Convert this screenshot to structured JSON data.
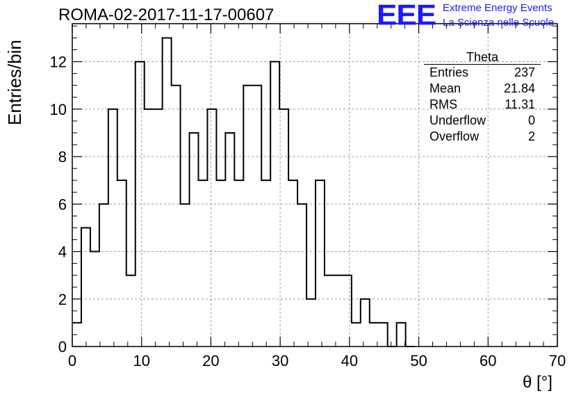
{
  "run_title": "ROMA-02-2017-11-17-00607",
  "logo": {
    "mark": "EEE",
    "line1": "Extreme Energy Events",
    "line2": "La Scienza nelle Scuole",
    "color": "#1a1aff"
  },
  "stats": {
    "title": "Theta",
    "rows": [
      {
        "label": "Entries",
        "value": "237"
      },
      {
        "label": "Mean",
        "value": "21.84"
      },
      {
        "label": "RMS",
        "value": "11.31"
      },
      {
        "label": "Underflow",
        "value": "0"
      },
      {
        "label": "Overflow",
        "value": "2"
      }
    ]
  },
  "chart_data": {
    "type": "histogram",
    "xlabel": "θ [°]",
    "ylabel": "Entries/bin",
    "xlim": [
      0,
      70
    ],
    "ylim": [
      0,
      13.6
    ],
    "bin_width": 1.3,
    "bin_start": 0,
    "values": [
      1,
      5,
      4,
      6,
      10,
      7,
      3,
      12,
      10,
      10,
      13,
      11,
      6,
      9,
      7,
      10,
      7,
      9,
      7,
      11,
      11,
      7,
      12,
      10,
      7,
      6,
      2,
      7,
      3,
      3,
      3,
      1,
      2,
      1,
      1,
      0,
      1,
      0
    ],
    "x_ticks": [
      "0",
      "10",
      "20",
      "30",
      "40",
      "50",
      "60",
      "70"
    ],
    "y_ticks": [
      "0",
      "2",
      "4",
      "6",
      "8",
      "10",
      "12"
    ],
    "grid": true,
    "line_color": "#000000",
    "grid_color": "#9a9a9a"
  }
}
